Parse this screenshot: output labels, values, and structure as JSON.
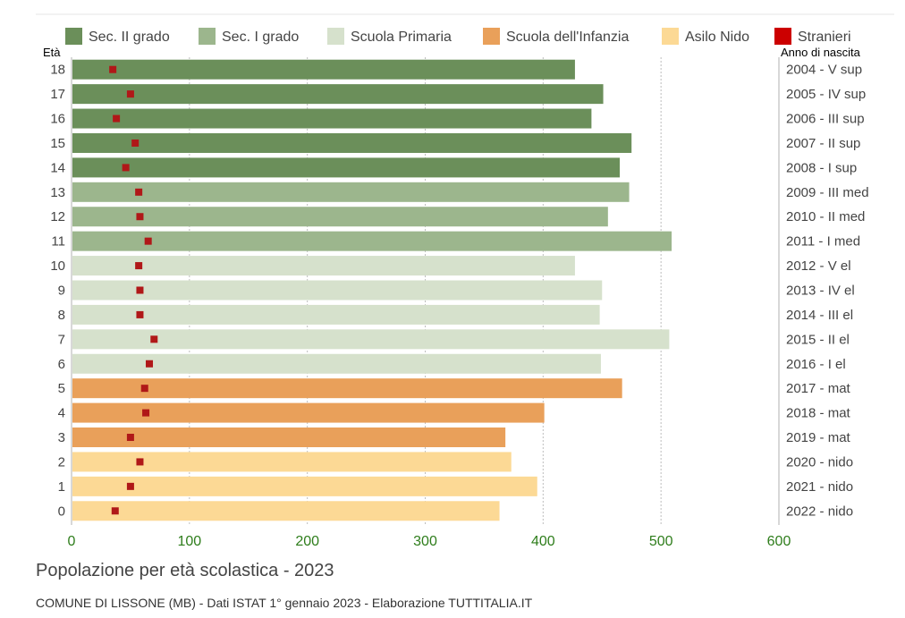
{
  "chart_data": {
    "type": "bar",
    "orientation": "horizontal",
    "title": "Popolazione per età scolastica - 2023",
    "subtitle": "COMUNE DI LISSONE (MB) - Dati ISTAT 1° gennaio 2023 - Elaborazione TUTTITALIA.IT",
    "ylabel_left": "Età",
    "ylabel_right": "Anno di nascita",
    "xlim": [
      0,
      600
    ],
    "xticks": [
      0,
      100,
      200,
      300,
      400,
      500,
      600
    ],
    "grid": true,
    "legend_position": "top",
    "legend": [
      {
        "name": "Sec. II grado",
        "color": "#6b8f5a"
      },
      {
        "name": "Sec. I grado",
        "color": "#9cb68d"
      },
      {
        "name": "Scuola Primaria",
        "color": "#d6e1cc"
      },
      {
        "name": "Scuola dell'Infanzia",
        "color": "#e9a05a"
      },
      {
        "name": "Asilo Nido",
        "color": "#fcd995"
      },
      {
        "name": "Stranieri",
        "color": "#cc0000"
      }
    ],
    "rows": [
      {
        "age": "18",
        "birth": "2004 - V sup",
        "value": 427,
        "stranieri": 35,
        "group": 0
      },
      {
        "age": "17",
        "birth": "2005 - IV sup",
        "value": 451,
        "stranieri": 50,
        "group": 0
      },
      {
        "age": "16",
        "birth": "2006 - III sup",
        "value": 441,
        "stranieri": 38,
        "group": 0
      },
      {
        "age": "15",
        "birth": "2007 - II sup",
        "value": 475,
        "stranieri": 54,
        "group": 0
      },
      {
        "age": "14",
        "birth": "2008 - I sup",
        "value": 465,
        "stranieri": 46,
        "group": 0
      },
      {
        "age": "13",
        "birth": "2009 - III med",
        "value": 473,
        "stranieri": 57,
        "group": 1
      },
      {
        "age": "12",
        "birth": "2010 - II med",
        "value": 455,
        "stranieri": 58,
        "group": 1
      },
      {
        "age": "11",
        "birth": "2011 - I med",
        "value": 509,
        "stranieri": 65,
        "group": 1
      },
      {
        "age": "10",
        "birth": "2012 - V el",
        "value": 427,
        "stranieri": 57,
        "group": 2
      },
      {
        "age": "9",
        "birth": "2013 - IV el",
        "value": 450,
        "stranieri": 58,
        "group": 2
      },
      {
        "age": "8",
        "birth": "2014 - III el",
        "value": 448,
        "stranieri": 58,
        "group": 2
      },
      {
        "age": "7",
        "birth": "2015 - II el",
        "value": 507,
        "stranieri": 70,
        "group": 2
      },
      {
        "age": "6",
        "birth": "2016 - I el",
        "value": 449,
        "stranieri": 66,
        "group": 2
      },
      {
        "age": "5",
        "birth": "2017 - mat",
        "value": 467,
        "stranieri": 62,
        "group": 3
      },
      {
        "age": "4",
        "birth": "2018 - mat",
        "value": 401,
        "stranieri": 63,
        "group": 3
      },
      {
        "age": "3",
        "birth": "2019 - mat",
        "value": 368,
        "stranieri": 50,
        "group": 3
      },
      {
        "age": "2",
        "birth": "2020 - nido",
        "value": 373,
        "stranieri": 58,
        "group": 4
      },
      {
        "age": "1",
        "birth": "2021 - nido",
        "value": 395,
        "stranieri": 50,
        "group": 4
      },
      {
        "age": "0",
        "birth": "2022 - nido",
        "value": 363,
        "stranieri": 37,
        "group": 4
      }
    ]
  }
}
